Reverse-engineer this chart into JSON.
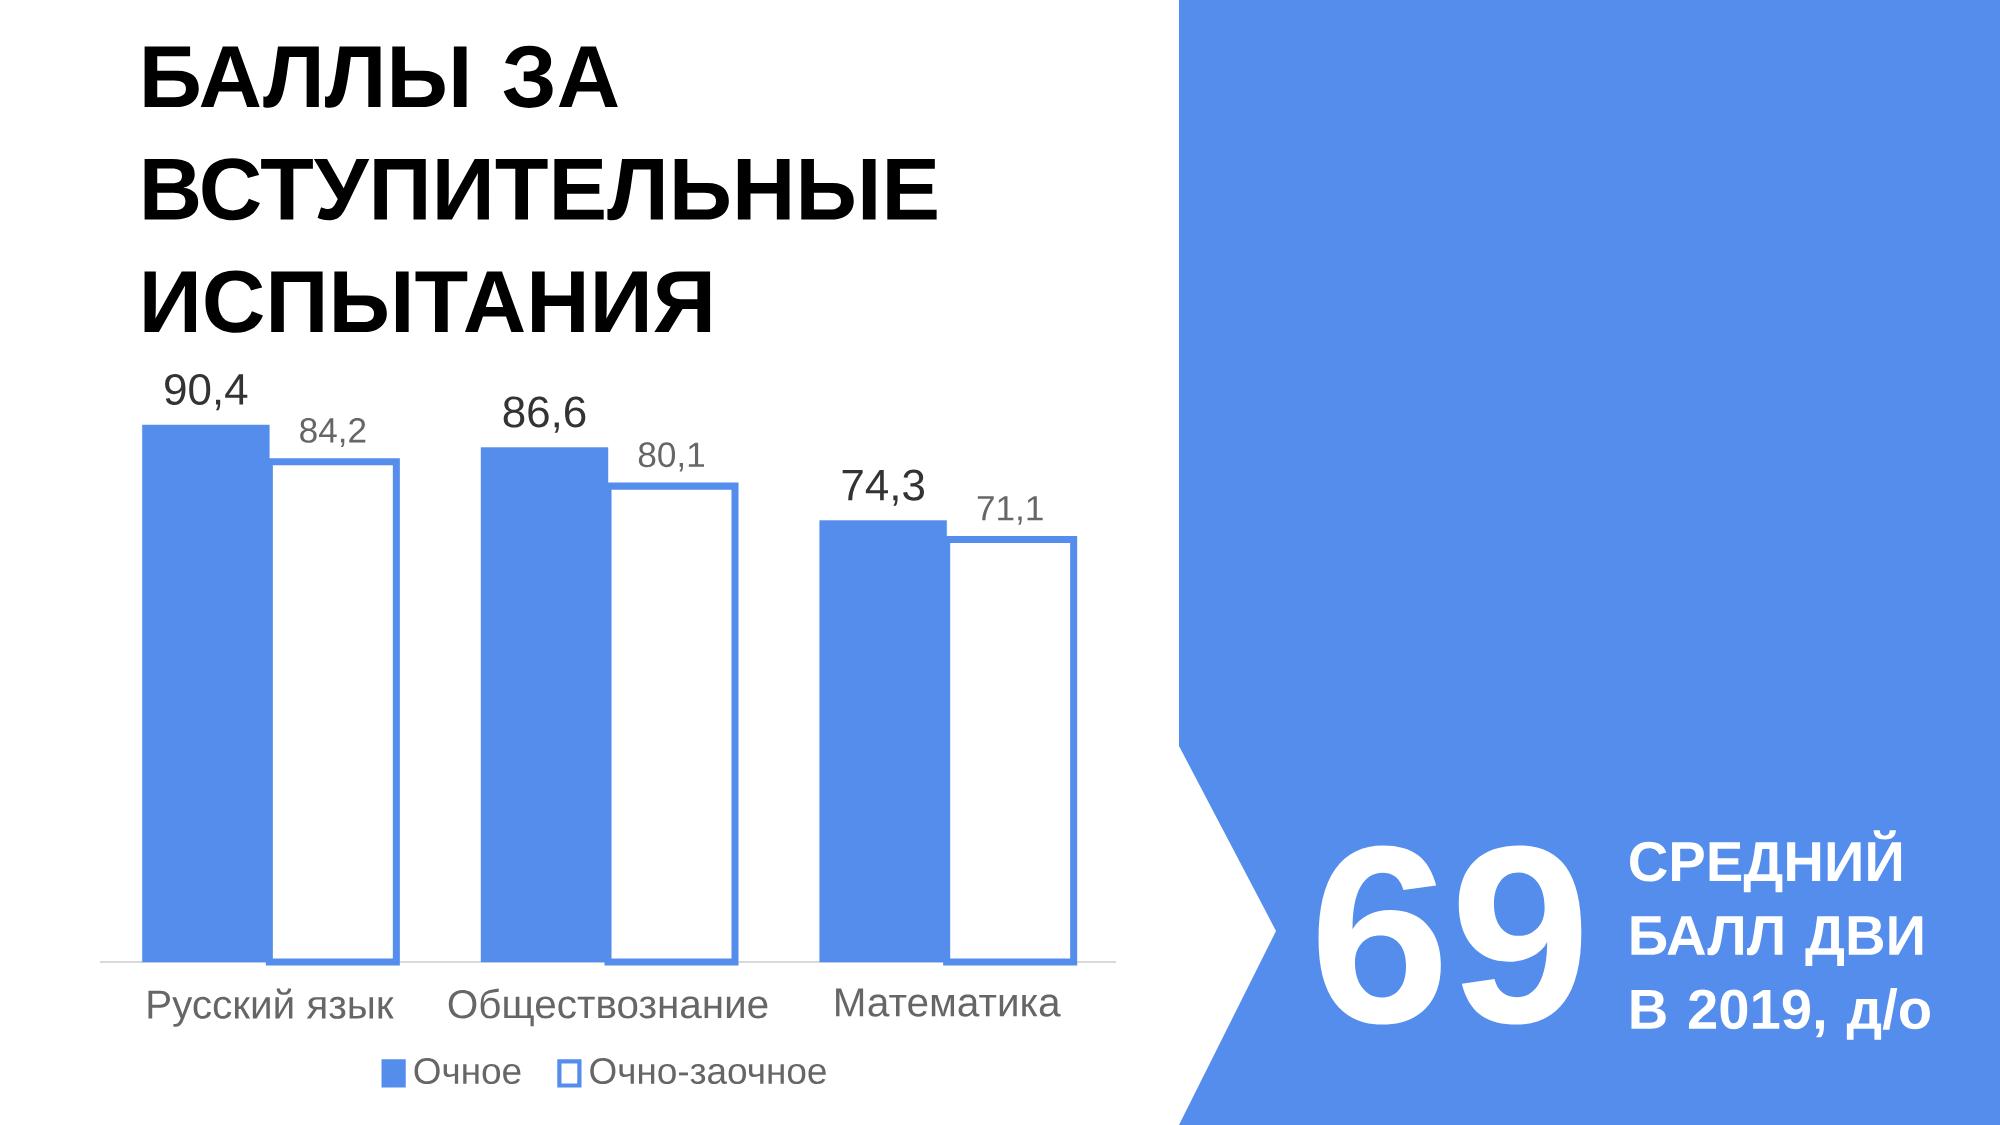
{
  "chart_data": {
    "type": "bar",
    "title": "БАЛЛЫ ЗА ВСТУПИТЕЛЬНЫЕ ИСПЫТАНИЯ",
    "categories": [
      "Русский язык",
      "Обществознание",
      "Математика"
    ],
    "series": [
      {
        "name": "Очное",
        "color": "#548dec",
        "values": [
          90.4,
          86.6,
          74.3
        ],
        "value_labels": [
          "90,4",
          "86,6",
          "74,3"
        ]
      },
      {
        "name": "Очно-заочное",
        "color": "#ffffff",
        "values": [
          84.2,
          80.1,
          71.1
        ],
        "value_labels": [
          "84,2",
          "80,1",
          "71,1"
        ]
      }
    ],
    "legend": "bottom",
    "annotations": [
      "69",
      "СРЕДНИЙ БАЛЛ ДВИ В 2019, д/о"
    ]
  }
}
